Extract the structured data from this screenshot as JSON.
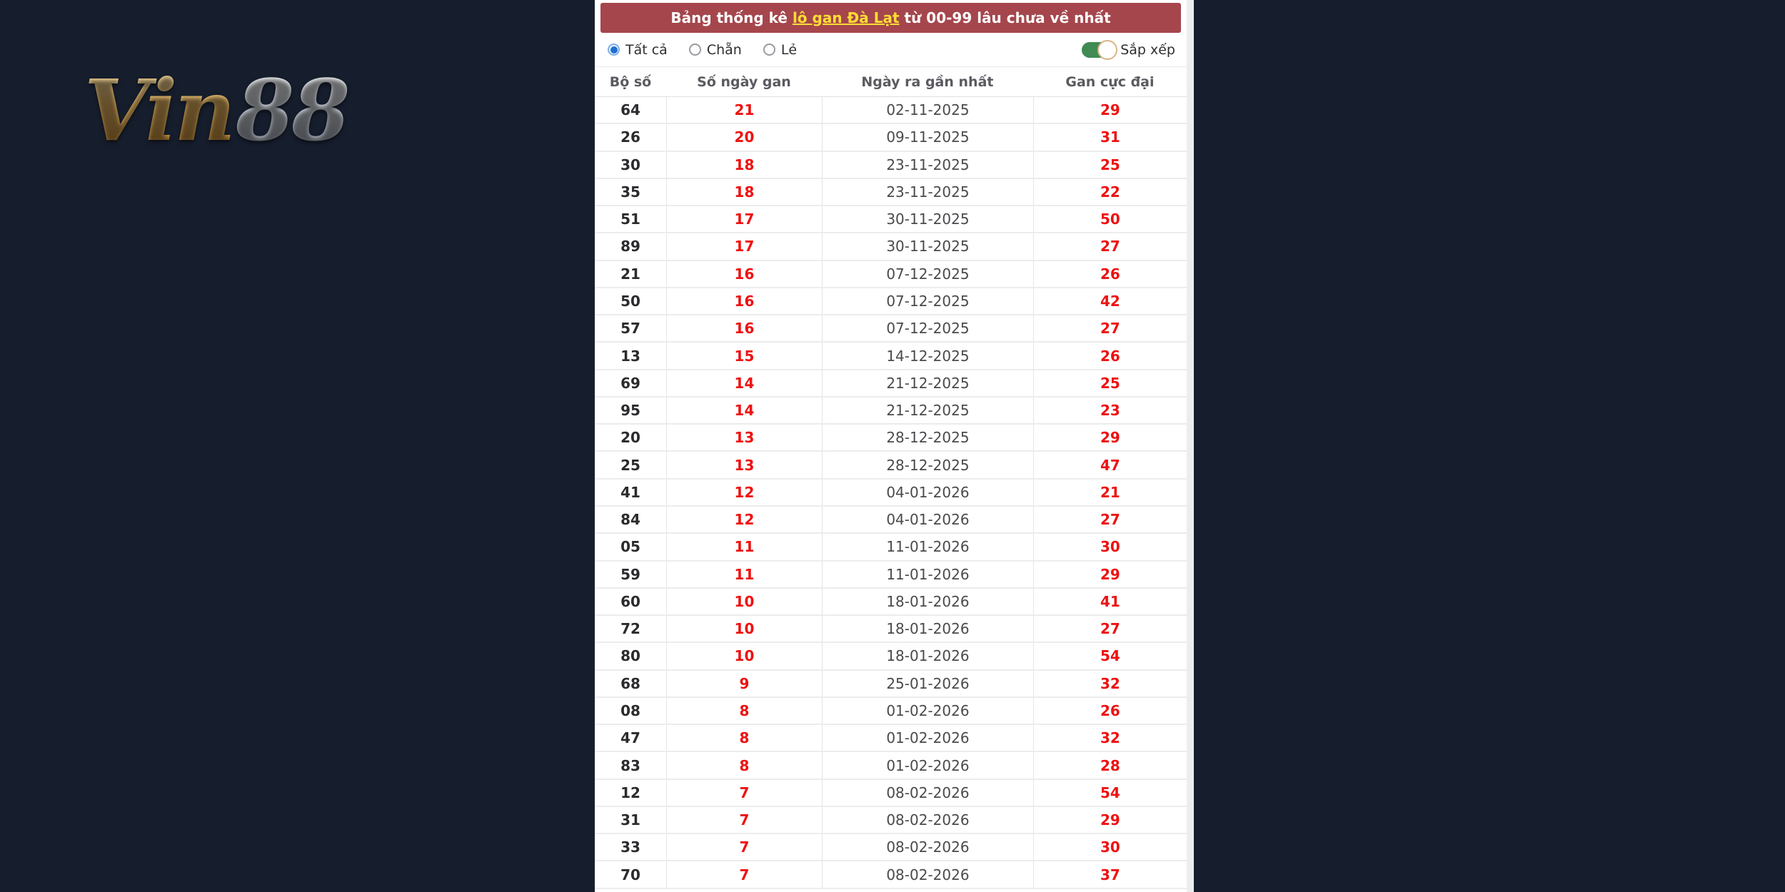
{
  "colors": {
    "page_bg": "#161e2d",
    "title_bar_bg": "#a5464d",
    "title_link": "#ffdd33",
    "accent_red": "#ee1111",
    "toggle_green": "#3f8b53",
    "radio_blue": "#1e6fd0",
    "top_tab_blue": "#2a7ac2",
    "logo_gold": "#d9a54a",
    "logo_silver": "#c9cdd6"
  },
  "logo": {
    "part_vin": "Vin",
    "part_88": "88"
  },
  "panel": {
    "title": {
      "prefix": "Bảng thống kê ",
      "link": "lô gan Đà Lạt",
      "suffix": " từ 00-99 lâu chưa về nhất"
    },
    "filters": {
      "options": [
        {
          "label": "Tất cả",
          "selected": true
        },
        {
          "label": "Chẵn",
          "selected": false
        },
        {
          "label": "Lẻ",
          "selected": false
        }
      ],
      "sort_toggle": {
        "label": "Sắp xếp",
        "on": true
      }
    },
    "table": {
      "columns": [
        "Bộ số",
        "Số ngày gan",
        "Ngày ra gần nhất",
        "Gan cực đại"
      ],
      "rows": [
        [
          "64",
          "21",
          "02-11-2025",
          "29"
        ],
        [
          "26",
          "20",
          "09-11-2025",
          "31"
        ],
        [
          "30",
          "18",
          "23-11-2025",
          "25"
        ],
        [
          "35",
          "18",
          "23-11-2025",
          "22"
        ],
        [
          "51",
          "17",
          "30-11-2025",
          "50"
        ],
        [
          "89",
          "17",
          "30-11-2025",
          "27"
        ],
        [
          "21",
          "16",
          "07-12-2025",
          "26"
        ],
        [
          "50",
          "16",
          "07-12-2025",
          "42"
        ],
        [
          "57",
          "16",
          "07-12-2025",
          "27"
        ],
        [
          "13",
          "15",
          "14-12-2025",
          "26"
        ],
        [
          "69",
          "14",
          "21-12-2025",
          "25"
        ],
        [
          "95",
          "14",
          "21-12-2025",
          "23"
        ],
        [
          "20",
          "13",
          "28-12-2025",
          "29"
        ],
        [
          "25",
          "13",
          "28-12-2025",
          "47"
        ],
        [
          "41",
          "12",
          "04-01-2026",
          "21"
        ],
        [
          "84",
          "12",
          "04-01-2026",
          "27"
        ],
        [
          "05",
          "11",
          "11-01-2026",
          "30"
        ],
        [
          "59",
          "11",
          "11-01-2026",
          "29"
        ],
        [
          "60",
          "10",
          "18-01-2026",
          "41"
        ],
        [
          "72",
          "10",
          "18-01-2026",
          "27"
        ],
        [
          "80",
          "10",
          "18-01-2026",
          "54"
        ],
        [
          "68",
          "9",
          "25-01-2026",
          "32"
        ],
        [
          "08",
          "8",
          "01-02-2026",
          "26"
        ],
        [
          "47",
          "8",
          "01-02-2026",
          "32"
        ],
        [
          "83",
          "8",
          "01-02-2026",
          "28"
        ],
        [
          "12",
          "7",
          "08-02-2026",
          "54"
        ],
        [
          "31",
          "7",
          "08-02-2026",
          "29"
        ],
        [
          "33",
          "7",
          "08-02-2026",
          "30"
        ],
        [
          "70",
          "7",
          "08-02-2026",
          "37"
        ]
      ]
    }
  }
}
